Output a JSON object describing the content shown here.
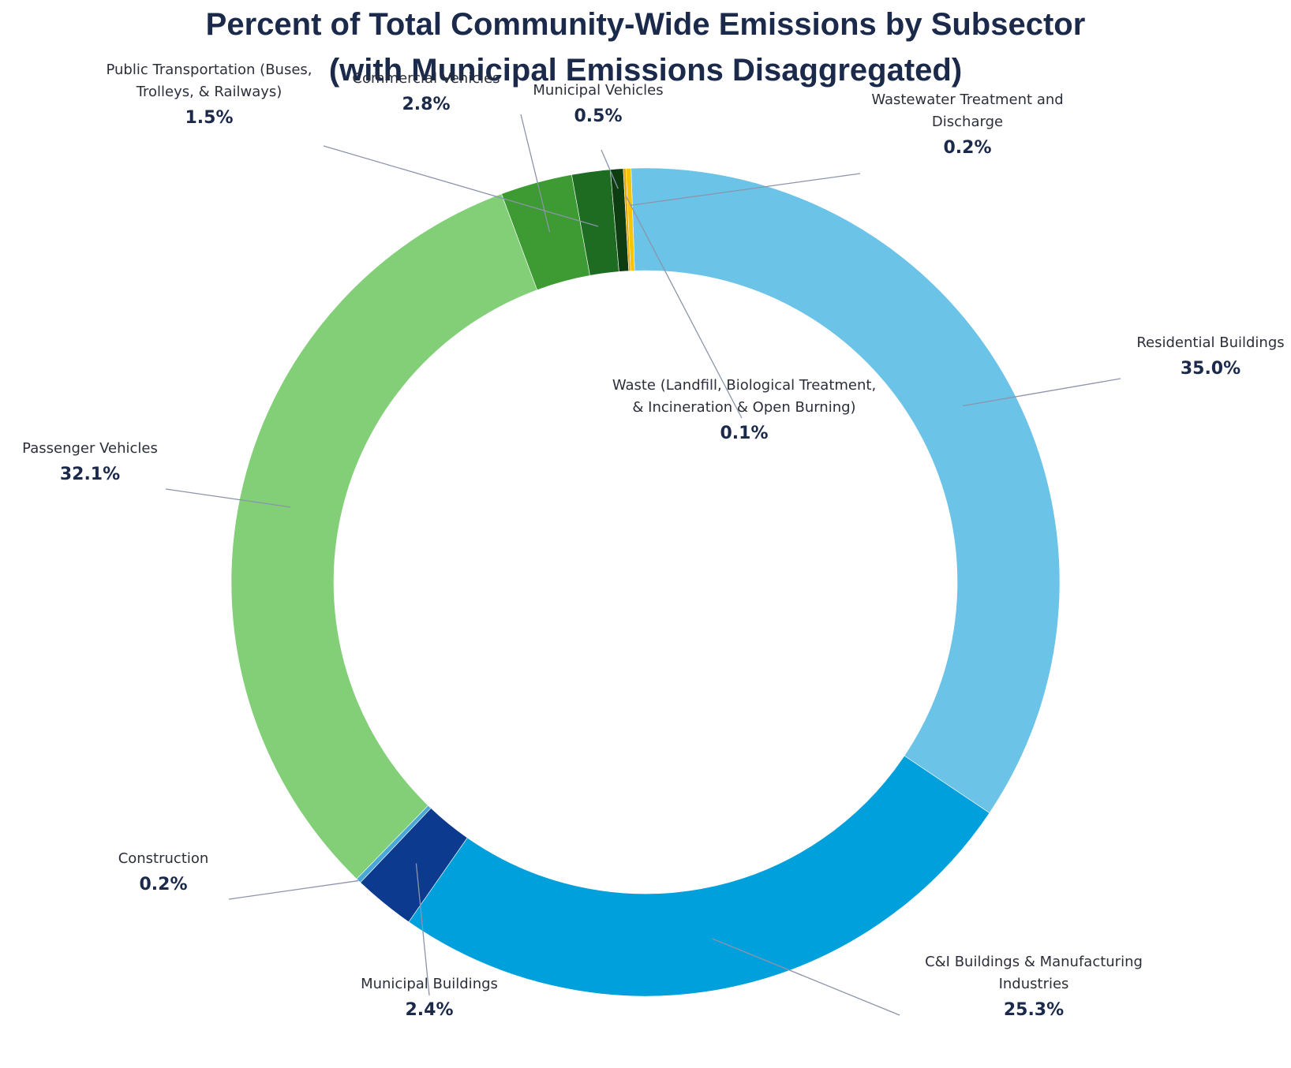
{
  "chart_data": {
    "type": "pie",
    "variant": "donut",
    "title_lines": [
      "Percent of Total Community-Wide Emissions by Subsector",
      "(with Municipal Emissions Disaggregated)"
    ],
    "legend": "none (callout labels)",
    "slices": [
      {
        "name_lines": [
          "Residential Buildings"
        ],
        "value": 35.0,
        "value_label": "35.0%",
        "color": "#6cc3e8"
      },
      {
        "name_lines": [
          "C&I Buildings & Manufacturing",
          "Industries"
        ],
        "value": 25.3,
        "value_label": "25.3%",
        "color": "#00a0dc"
      },
      {
        "name_lines": [
          "Municipal Buildings"
        ],
        "value": 2.4,
        "value_label": "2.4%",
        "color": "#0b3a8f"
      },
      {
        "name_lines": [
          "Construction"
        ],
        "value": 0.2,
        "value_label": "0.2%",
        "color": "#4aa8d8"
      },
      {
        "name_lines": [
          "Passenger Vehicles"
        ],
        "value": 32.1,
        "value_label": "32.1%",
        "color": "#82cf78"
      },
      {
        "name_lines": [
          "Commercial Vehicles"
        ],
        "value": 2.8,
        "value_label": "2.8%",
        "color": "#3e9b33"
      },
      {
        "name_lines": [
          "Public Transportation (Buses,",
          "Trolleys, & Railways)"
        ],
        "value": 1.5,
        "value_label": "1.5%",
        "color": "#1e6b22"
      },
      {
        "name_lines": [
          "Municipal Vehicles"
        ],
        "value": 0.5,
        "value_label": "0.5%",
        "color": "#0f3d12"
      },
      {
        "name_lines": [
          "Waste (Landfill, Biological Treatment,",
          "& Incineration & Open Burning)"
        ],
        "value": 0.1,
        "value_label": "0.1%",
        "color": "#e8a400"
      },
      {
        "name_lines": [
          "Wastewater Treatment and",
          "Discharge"
        ],
        "value": 0.2,
        "value_label": "0.2%",
        "color": "#f6c400"
      }
    ]
  }
}
